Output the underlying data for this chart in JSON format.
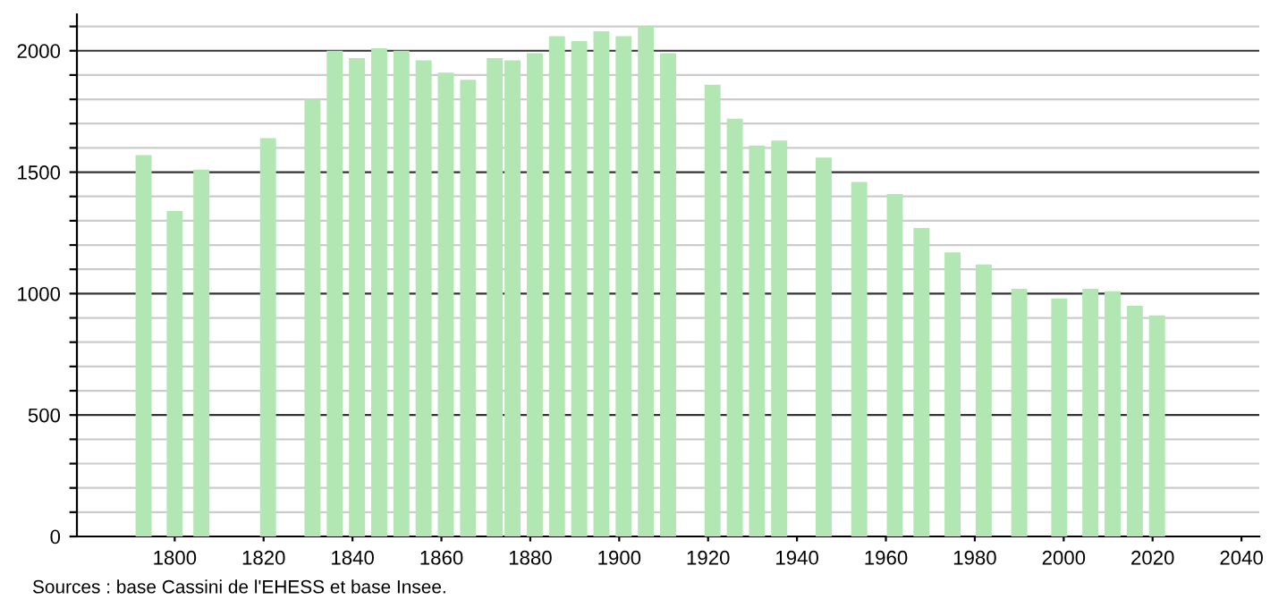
{
  "chart_data": {
    "type": "bar",
    "x": [
      1793,
      1800,
      1806,
      1821,
      1831,
      1836,
      1841,
      1846,
      1851,
      1856,
      1861,
      1866,
      1872,
      1876,
      1881,
      1886,
      1891,
      1896,
      1901,
      1906,
      1911,
      1921,
      1926,
      1931,
      1936,
      1946,
      1954,
      1962,
      1968,
      1975,
      1982,
      1990,
      1999,
      2006,
      2011,
      2016,
      2021
    ],
    "values": [
      1570,
      1340,
      1510,
      1640,
      1800,
      2000,
      1970,
      2010,
      2000,
      1960,
      1910,
      1880,
      1970,
      1960,
      1990,
      2060,
      2040,
      2080,
      2060,
      2100,
      1990,
      1860,
      1720,
      1610,
      1630,
      1560,
      1460,
      1410,
      1270,
      1170,
      1120,
      1020,
      980,
      1020,
      1010,
      950,
      910
    ],
    "color": "#b2e6b2",
    "xlim": [
      1778,
      2044
    ],
    "xticks": [
      1800,
      1820,
      1840,
      1860,
      1880,
      1900,
      1920,
      1940,
      1960,
      1980,
      2000,
      2020,
      2040
    ],
    "ylim": [
      0,
      2150
    ],
    "yticks": [
      0,
      {
        "value": 100,
        "label": null
      },
      {
        "value": 200,
        "label": null
      },
      {
        "value": 300,
        "label": null
      },
      {
        "value": 400,
        "label": null
      },
      500,
      {
        "value": 600,
        "label": null
      },
      {
        "value": 700,
        "label": null
      },
      {
        "value": 800,
        "label": null
      },
      {
        "value": 900,
        "label": null
      },
      1000,
      {
        "value": 1100,
        "label": null
      },
      {
        "value": 1200,
        "label": null
      },
      {
        "value": 1300,
        "label": null
      },
      {
        "value": 1400,
        "label": null
      },
      1500,
      {
        "value": 1600,
        "label": null
      },
      {
        "value": 1700,
        "label": null
      },
      {
        "value": 1800,
        "label": null
      },
      {
        "value": 1900,
        "label": null
      },
      2000,
      {
        "value": 2100,
        "label": null
      }
    ],
    "grid": "y",
    "annotations": [
      "Sources : base Cassini de l'EHESS et base Insee."
    ]
  }
}
